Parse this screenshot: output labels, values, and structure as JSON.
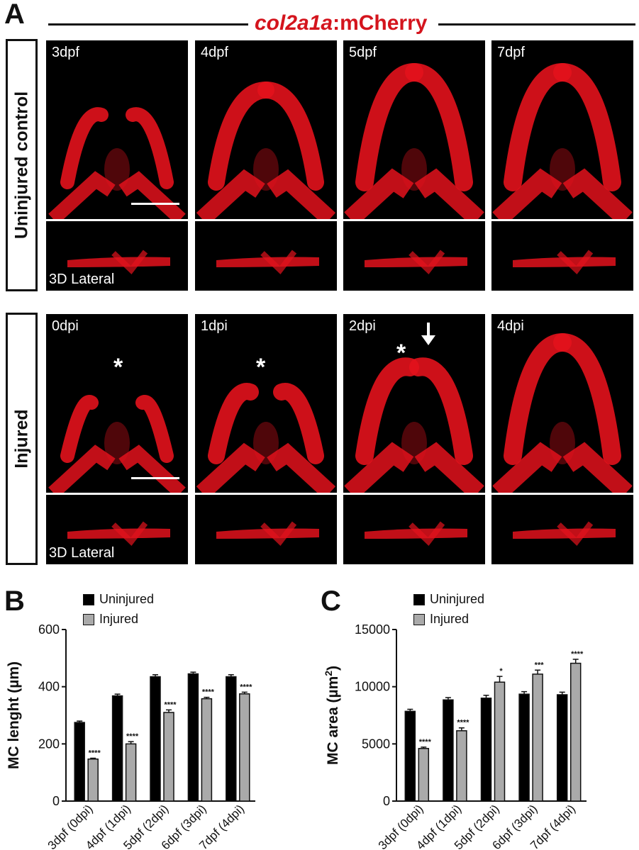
{
  "panel_a": {
    "letter": "A",
    "title_italic": "col2a1a",
    "title_rest": ":mCherry",
    "row1_label": "Uninjured control",
    "row2_label": "Injured",
    "row1_tiles": [
      "3dpf",
      "4dpf",
      "5dpf",
      "7dpf"
    ],
    "row2_tiles": [
      "0dpi",
      "1dpi",
      "2dpi",
      "4dpi"
    ],
    "lateral_label": "3D Lateral",
    "star": "*"
  },
  "colors": {
    "uninjured": "#000000",
    "injured": "#aaaaaa",
    "title": "#d4141d",
    "signal": "#e3121c"
  },
  "chart_data": [
    {
      "panel": "B",
      "type": "bar",
      "ylabel": "MC lenght (µm)",
      "ylim": [
        0,
        600
      ],
      "yticks": [
        0,
        200,
        400,
        600
      ],
      "categories": [
        "3dpf (0dpi)",
        "4dpf (1dpi)",
        "5dpf (2dpi)",
        "6dpf (3dpi)",
        "7dpf (4dpi)"
      ],
      "series": [
        {
          "name": "Uninjured",
          "values": [
            275,
            368,
            435,
            445,
            435
          ],
          "errors": [
            5,
            6,
            7,
            6,
            7
          ]
        },
        {
          "name": "Injured",
          "values": [
            147,
            200,
            310,
            358,
            375
          ],
          "errors": [
            3,
            8,
            9,
            5,
            6
          ]
        }
      ],
      "significance": [
        "****",
        "****",
        "****",
        "****",
        "****"
      ]
    },
    {
      "panel": "C",
      "type": "bar",
      "ylabel": "MC area (µm",
      "ylabel_sup": "2",
      "ylabel_close": ")",
      "ylim": [
        0,
        15000
      ],
      "yticks": [
        0,
        5000,
        10000,
        15000
      ],
      "categories": [
        "3dpf (0dpi)",
        "4dpf (1dpi)",
        "5dpf (2dpi)",
        "6dpf (3dpi)",
        "7dpf (4dpi)"
      ],
      "series": [
        {
          "name": "Uninjured",
          "values": [
            7850,
            8850,
            9000,
            9350,
            9300
          ],
          "errors": [
            180,
            200,
            250,
            220,
            220
          ]
        },
        {
          "name": "Injured",
          "values": [
            4600,
            6150,
            10400,
            11100,
            12050
          ],
          "errors": [
            120,
            250,
            500,
            350,
            350
          ]
        }
      ],
      "significance": [
        "****",
        "****",
        "*",
        "***",
        "****"
      ]
    }
  ]
}
